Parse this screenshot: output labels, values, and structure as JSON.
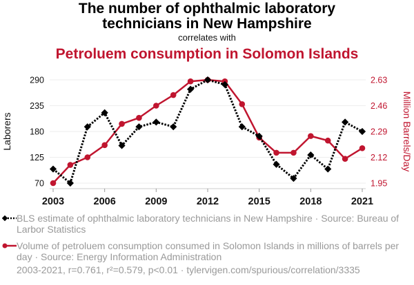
{
  "header": {
    "title_line1": "The number of ophthalmic laboratory",
    "title_line2": "technicians in New Hampshire",
    "subtitle": "correlates with",
    "title2": "Petroluem consumption in Solomon Islands"
  },
  "colors": {
    "series1": "#000000",
    "series2": "#c0152f",
    "grid": "#eeeeee",
    "legend_text": "#999999"
  },
  "legend": {
    "items": [
      {
        "text": "BLS estimate of ophthalmic laboratory technicians in New Hampshire · Source: Bureau of Larbor Statistics",
        "marker": "black-dotted-diamond"
      },
      {
        "text": "Volume of petroluem consumption consumed in Solomon Islands in millions of barrels per day · Source: Energy Information Administration",
        "marker": "red-solid-circle"
      }
    ]
  },
  "footer": "2003-2021, r=0.761, r²=0.579, p<0.01 · tylervigen.com/spurious/correlation/3335",
  "chart_data": {
    "type": "line",
    "title": "The number of ophthalmic laboratory technicians in New Hampshire correlates with Petroluem consumption in Solomon Islands",
    "x": [
      2003,
      2004,
      2005,
      2006,
      2007,
      2008,
      2009,
      2010,
      2011,
      2012,
      2013,
      2014,
      2015,
      2016,
      2017,
      2018,
      2019,
      2020,
      2021
    ],
    "xticks": [
      "2003",
      "2006",
      "2009",
      "2012",
      "2015",
      "2018",
      "2021"
    ],
    "xlim": [
      2003,
      2021
    ],
    "grid": true,
    "legend_position": "bottom",
    "y_left": {
      "label": "Laborers",
      "ylim": [
        70,
        290
      ],
      "ticks": [
        "70",
        "125",
        "180",
        "235",
        "290"
      ]
    },
    "y_right": {
      "label": "Million Barrels/Day",
      "ylim": [
        1.95,
        2.63
      ],
      "ticks": [
        "1.95",
        "2.12",
        "2.29",
        "2.46",
        "2.63"
      ]
    },
    "series": [
      {
        "name": "BLS estimate of ophthalmic laboratory technicians in New Hampshire",
        "axis": "left",
        "style": "dotted-diamond",
        "values": [
          100,
          70,
          190,
          220,
          150,
          190,
          200,
          190,
          270,
          290,
          280,
          190,
          170,
          110,
          80,
          130,
          100,
          200,
          180
        ]
      },
      {
        "name": "Volume of petroluem consumption consumed in Solomon Islands",
        "axis": "right",
        "style": "solid-circle",
        "values": [
          1.95,
          2.07,
          2.12,
          2.2,
          2.34,
          2.38,
          2.46,
          2.53,
          2.62,
          2.63,
          2.62,
          2.47,
          2.25,
          2.15,
          2.15,
          2.26,
          2.23,
          2.11,
          2.18
        ]
      }
    ]
  }
}
